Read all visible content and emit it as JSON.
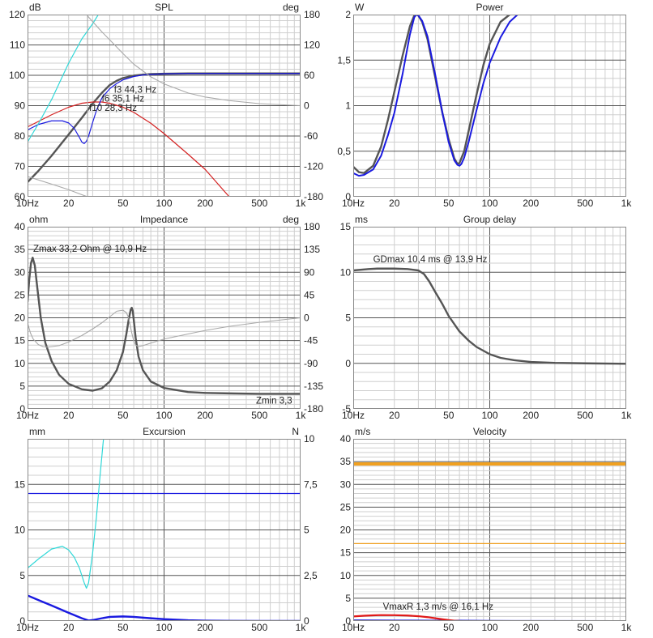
{
  "chart_data": [
    {
      "id": "spl",
      "type": "line",
      "title": "SPL",
      "x_scale": "log",
      "xlim": [
        10,
        1000
      ],
      "x_ticks": [
        10,
        20,
        50,
        100,
        200,
        500,
        1000
      ],
      "x_tick_labels": [
        "10Hz",
        "20",
        "50",
        "100",
        "200",
        "500",
        "1k"
      ],
      "y_unit_left": "dB",
      "ylim_left": [
        60,
        120
      ],
      "y_ticks_left": [
        "60",
        "70",
        "80",
        "90",
        "100",
        "110",
        "120"
      ],
      "y_unit_right": "deg",
      "ylim_right": [
        -180,
        180
      ],
      "y_ticks_right": [
        "-180",
        "-120",
        "-60",
        "0",
        "60",
        "120",
        "180"
      ],
      "grid": true,
      "series": [
        {
          "axis": "left",
          "color": "#555555",
          "width": 2.4,
          "x": [
            10,
            12,
            15,
            20,
            25,
            30,
            35,
            40,
            45,
            50,
            60,
            70,
            80,
            100,
            150,
            200,
            300,
            500,
            1000
          ],
          "y": [
            64.8,
            68.5,
            73.5,
            80.5,
            86,
            90.7,
            94.2,
            96.8,
            98.2,
            99.1,
            99.9,
            100.2,
            100.4,
            100.5,
            100.6,
            100.6,
            100.6,
            100.6,
            100.6
          ]
        },
        {
          "axis": "left",
          "color": "#d42020",
          "width": 1.2,
          "x": [
            10,
            15,
            20,
            25,
            30,
            35,
            40,
            50,
            60,
            80,
            100,
            150,
            200,
            300
          ],
          "y": [
            83,
            87,
            89.5,
            90.8,
            91.2,
            91.2,
            90.8,
            89.5,
            87.8,
            84.2,
            80.8,
            74,
            69,
            60
          ]
        },
        {
          "axis": "left",
          "color": "#1a1ae0",
          "width": 1.2,
          "x": [
            10,
            12,
            15,
            18,
            20,
            22,
            24,
            25,
            26,
            27,
            28,
            30,
            32,
            35,
            40,
            45,
            50,
            60,
            70,
            80,
            100,
            150,
            200,
            300,
            500,
            1000
          ],
          "y": [
            82,
            83.8,
            85,
            85,
            84.3,
            82.5,
            79.5,
            78,
            77.5,
            78.3,
            80,
            84.5,
            88.5,
            92.5,
            95.6,
            97.3,
            98.5,
            99.6,
            100.1,
            100.3,
            100.5,
            100.6,
            100.6,
            100.6,
            100.6,
            100.6
          ]
        },
        {
          "axis": "left",
          "color": "#30d8d8",
          "width": 1.2,
          "x": [
            10,
            12,
            15,
            20,
            25,
            30,
            33
          ],
          "y": [
            78,
            84,
            92,
            104,
            112,
            117,
            120
          ]
        },
        {
          "axis": "right",
          "color": "#a8a8a8",
          "width": 1.1,
          "x": [
            27.5,
            28,
            30,
            35,
            40,
            50,
            60,
            80,
            100,
            150,
            200,
            300,
            500,
            1000
          ],
          "y": [
            178,
            175,
            166,
            146,
            130,
            103,
            82,
            57,
            43,
            25,
            17,
            10,
            4,
            0
          ]
        },
        {
          "axis": "right",
          "color": "#a8a8a8",
          "width": 1.1,
          "x": [
            10,
            15,
            20,
            25,
            27.5
          ],
          "y": [
            -140,
            -155,
            -166,
            -176,
            -180
          ]
        },
        {
          "axis": "right",
          "color": "#a8a8a8",
          "width": 1.1,
          "x": [
            27.5,
            27.5
          ],
          "y": [
            180,
            -180
          ]
        }
      ],
      "annotations": [
        {
          "text": "f3 44,3 Hz",
          "x": 43,
          "y": 94.3
        },
        {
          "text": "f6 35,1 Hz",
          "x": 35,
          "y": 91.3
        },
        {
          "text": "f10 28,3 Hz",
          "x": 28.3,
          "y": 88.3
        }
      ]
    },
    {
      "id": "power",
      "type": "line",
      "title": "Power",
      "x_scale": "log",
      "xlim": [
        10,
        1000
      ],
      "x_ticks": [
        10,
        20,
        50,
        100,
        200,
        500,
        1000
      ],
      "x_tick_labels": [
        "10Hz",
        "20",
        "50",
        "100",
        "200",
        "500",
        "1k"
      ],
      "y_unit_left": "W",
      "ylim_left": [
        0,
        2
      ],
      "y_ticks_left": [
        "0",
        "0,5",
        "1",
        "1,5",
        "2"
      ],
      "grid": true,
      "series": [
        {
          "axis": "left",
          "color": "#555555",
          "width": 2.4,
          "x": [
            10,
            11,
            12,
            14,
            16,
            18,
            20,
            23,
            26,
            28,
            29,
            30,
            32,
            35,
            40,
            45,
            50,
            55,
            58,
            60,
            65,
            70,
            80,
            90,
            100,
            120,
            140
          ],
          "y": [
            0.33,
            0.27,
            0.26,
            0.34,
            0.55,
            0.85,
            1.15,
            1.55,
            1.87,
            1.99,
            2.0,
            1.99,
            1.92,
            1.73,
            1.3,
            0.92,
            0.63,
            0.42,
            0.36,
            0.37,
            0.5,
            0.72,
            1.12,
            1.45,
            1.68,
            1.92,
            2.0
          ]
        },
        {
          "axis": "left",
          "color": "#1a1ae0",
          "width": 2.0,
          "x": [
            10,
            11,
            12,
            14,
            16,
            18,
            20,
            23,
            26,
            28,
            29,
            30,
            32,
            35,
            40,
            45,
            50,
            55,
            58,
            60,
            62,
            65,
            70,
            80,
            90,
            100,
            120,
            140,
            160
          ],
          "y": [
            0.26,
            0.23,
            0.24,
            0.3,
            0.45,
            0.68,
            0.92,
            1.35,
            1.78,
            1.97,
            2.0,
            1.99,
            1.93,
            1.76,
            1.33,
            0.92,
            0.6,
            0.4,
            0.35,
            0.34,
            0.36,
            0.43,
            0.6,
            0.95,
            1.25,
            1.47,
            1.75,
            1.92,
            2.0
          ]
        }
      ]
    },
    {
      "id": "impedance",
      "type": "line",
      "title": "Impedance",
      "x_scale": "log",
      "xlim": [
        10,
        1000
      ],
      "x_ticks": [
        10,
        20,
        50,
        100,
        200,
        500,
        1000
      ],
      "x_tick_labels": [
        "10Hz",
        "20",
        "50",
        "100",
        "200",
        "500",
        "1k"
      ],
      "y_unit_left": "ohm",
      "ylim_left": [
        0,
        40
      ],
      "y_ticks_left": [
        "0",
        "5",
        "10",
        "15",
        "20",
        "25",
        "30",
        "35",
        "40"
      ],
      "y_unit_right": "deg",
      "ylim_right": [
        -180,
        180
      ],
      "y_ticks_right": [
        "-180",
        "-135",
        "-90",
        "-45",
        "0",
        "45",
        "90",
        "135",
        "180"
      ],
      "grid": true,
      "series": [
        {
          "axis": "left",
          "color": "#555555",
          "width": 2.4,
          "x": [
            10,
            10.3,
            10.6,
            10.9,
            11.3,
            11.8,
            12.5,
            13.5,
            15,
            17,
            20,
            25,
            30,
            35,
            40,
            45,
            50,
            53,
            55,
            57,
            58,
            59,
            60,
            62,
            65,
            70,
            80,
            100,
            150,
            200,
            300,
            500,
            1000
          ],
          "y": [
            23.5,
            28.5,
            32,
            33.2,
            31.5,
            26.5,
            20,
            14.5,
            10.5,
            7.5,
            5.5,
            4.3,
            4,
            4.5,
            6,
            8.5,
            12.5,
            16.5,
            19.5,
            21.8,
            22.2,
            21.5,
            19.5,
            15.5,
            11.5,
            8.5,
            6,
            4.6,
            3.7,
            3.5,
            3.4,
            3.3,
            3.3
          ]
        },
        {
          "axis": "right",
          "color": "#a8a8a8",
          "width": 1.1,
          "x": [
            10,
            10.5,
            11,
            12,
            13,
            14,
            15,
            17,
            20,
            25,
            30,
            35,
            40,
            45,
            50,
            53,
            55,
            57,
            58,
            60,
            62,
            65,
            70,
            80,
            100,
            150,
            200,
            300,
            500,
            1000
          ],
          "y": [
            -10,
            -30,
            -42,
            -53,
            -57,
            -58,
            -57,
            -55,
            -48,
            -35,
            -22,
            -10,
            2,
            13,
            15,
            10,
            0,
            -20,
            -30,
            -46,
            -54,
            -57,
            -55,
            -50,
            -42,
            -32,
            -25,
            -17,
            -9,
            0
          ]
        }
      ],
      "annotations": [
        {
          "text": "Zmax 33,2 Ohm @ 10,9 Hz",
          "x": 11,
          "y": 34.5
        },
        {
          "text": "Zmin 3,3",
          "x": 640,
          "y": 1.2
        }
      ]
    },
    {
      "id": "group-delay",
      "type": "line",
      "title": "Group delay",
      "x_scale": "log",
      "xlim": [
        10,
        1000
      ],
      "x_ticks": [
        10,
        20,
        50,
        100,
        200,
        500,
        1000
      ],
      "x_tick_labels": [
        "10Hz",
        "20",
        "50",
        "100",
        "200",
        "500",
        "1k"
      ],
      "y_unit_left": "ms",
      "ylim_left": [
        -5,
        15
      ],
      "y_ticks_left": [
        "-5",
        "0",
        "5",
        "10",
        "15"
      ],
      "grid": true,
      "series": [
        {
          "axis": "left",
          "color": "#555555",
          "width": 2.4,
          "x": [
            10,
            13,
            15,
            20,
            25,
            30,
            33,
            36,
            40,
            45,
            50,
            60,
            70,
            80,
            100,
            120,
            150,
            200,
            300,
            500,
            1000
          ],
          "y": [
            10.2,
            10.35,
            10.4,
            10.4,
            10.35,
            10.2,
            9.8,
            9.0,
            7.8,
            6.5,
            5.2,
            3.5,
            2.5,
            1.8,
            1.0,
            0.6,
            0.35,
            0.15,
            0.05,
            0.0,
            -0.05
          ]
        }
      ],
      "annotations": [
        {
          "text": "GDmax 10,4 ms  @ 13,9 Hz",
          "x": 14,
          "y": 11.1
        }
      ]
    },
    {
      "id": "excursion",
      "type": "line",
      "title": "Excursion",
      "x_scale": "log",
      "xlim": [
        10,
        1000
      ],
      "x_ticks": [
        10,
        20,
        50,
        100,
        200,
        500,
        1000
      ],
      "x_tick_labels": [
        "10Hz",
        "20",
        "50",
        "100",
        "200",
        "500",
        "1k"
      ],
      "y_unit_left": "mm",
      "ylim_left": [
        0,
        20
      ],
      "y_ticks_left": [
        "0",
        "5",
        "10",
        "15",
        ""
      ],
      "y_unit_right": "N",
      "ylim_right": [
        0,
        10
      ],
      "y_ticks_right": [
        "0",
        "2,5",
        "5",
        "7,5",
        "10"
      ],
      "grid": true,
      "series": [
        {
          "axis": "left",
          "color": "#1a1ae0",
          "width": 1.2,
          "x": [
            10,
            1000
          ],
          "y": [
            14,
            14
          ]
        },
        {
          "axis": "left",
          "color": "#30d8d8",
          "width": 1.2,
          "x": [
            10,
            12,
            15,
            18,
            20,
            22,
            24,
            26,
            27,
            28,
            30,
            32,
            34,
            36
          ],
          "y": [
            5.8,
            6.8,
            7.9,
            8.2,
            7.8,
            7.0,
            5.8,
            4.2,
            3.6,
            4.2,
            7.5,
            11.5,
            16,
            20
          ]
        },
        {
          "axis": "left",
          "color": "#1a1ae0",
          "width": 2.4,
          "x": [
            10,
            12,
            15,
            20,
            25,
            28,
            30,
            35,
            40,
            50,
            60,
            80,
            100,
            150,
            200,
            300,
            500,
            1000
          ],
          "y": [
            2.8,
            2.3,
            1.7,
            0.9,
            0.3,
            0.05,
            0.1,
            0.3,
            0.45,
            0.5,
            0.45,
            0.3,
            0.2,
            0.08,
            0.04,
            0.02,
            0.01,
            0.0
          ]
        }
      ]
    },
    {
      "id": "velocity",
      "type": "line",
      "title": "Velocity",
      "x_scale": "log",
      "xlim": [
        10,
        1000
      ],
      "x_ticks": [
        10,
        20,
        50,
        100,
        200,
        500,
        1000
      ],
      "x_tick_labels": [
        "10Hz",
        "20",
        "50",
        "100",
        "200",
        "500",
        "1k"
      ],
      "y_unit_left": "m/s",
      "ylim_left": [
        0,
        40
      ],
      "y_ticks_left": [
        "0",
        "5",
        "10",
        "15",
        "20",
        "25",
        "30",
        "35",
        "40"
      ],
      "grid": true,
      "series": [
        {
          "axis": "left",
          "color": "#f0a020",
          "width": 4.0,
          "x": [
            10,
            1000
          ],
          "y": [
            34.5,
            34.5
          ]
        },
        {
          "axis": "left",
          "color": "#f0a020",
          "width": 1.3,
          "x": [
            10,
            1000
          ],
          "y": [
            17,
            17
          ]
        },
        {
          "axis": "left",
          "color": "#1a1ae0",
          "width": 2.0,
          "x": [
            10,
            20,
            40,
            60,
            80,
            100,
            200,
            1000
          ],
          "y": [
            0.15,
            0.12,
            0.1,
            0.08,
            0.06,
            0.04,
            0.02,
            0.0
          ]
        },
        {
          "axis": "left",
          "color": "#e01818",
          "width": 2.2,
          "x": [
            10,
            12,
            14,
            16,
            20,
            25,
            30,
            35,
            40,
            45,
            50,
            55,
            60
          ],
          "y": [
            1.0,
            1.15,
            1.25,
            1.3,
            1.28,
            1.2,
            1.05,
            0.85,
            0.6,
            0.38,
            0.2,
            0.08,
            0.0
          ]
        }
      ],
      "annotations": [
        {
          "text": "VmaxR 1,3 m/s @ 16,1 Hz",
          "x": 16.5,
          "y": 2.5,
          "color": "#e01818"
        }
      ]
    }
  ]
}
